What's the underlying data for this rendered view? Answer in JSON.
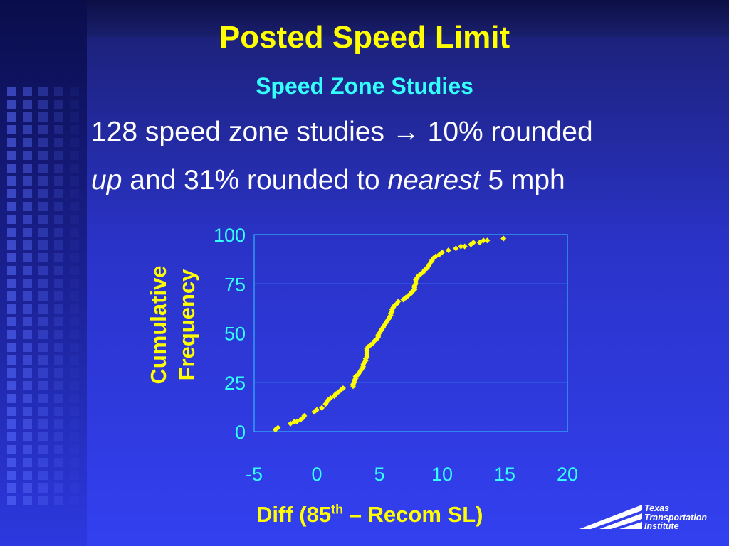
{
  "slide": {
    "title": "Posted Speed Limit",
    "subtitle": "Speed Zone Studies",
    "line1": {
      "text_a": "128 speed zone studies",
      "arrow": "→",
      "text_b": "10% rounded"
    },
    "line2": {
      "em1": "up",
      "text_a": "and 31% rounded to",
      "em2": "nearest",
      "text_b": "5 mph"
    }
  },
  "chart_data": {
    "type": "scatter",
    "title": "",
    "xlabel": {
      "prefix": "Diff (85",
      "sup": "th",
      "suffix": " – Recom SL)"
    },
    "ylabel": [
      "Cumulative",
      "Frequency"
    ],
    "xlim": [
      -5,
      20
    ],
    "ylim": [
      0,
      100
    ],
    "xticks": [
      "-5",
      "0",
      "5",
      "10",
      "15",
      "20"
    ],
    "yticks": [
      "0",
      "25",
      "50",
      "75",
      "100"
    ],
    "grid_y": true,
    "legend": "none",
    "marker_color": "#ffff00",
    "points": [
      [
        -3.3,
        1
      ],
      [
        -3.1,
        2
      ],
      [
        -2.1,
        4
      ],
      [
        -1.8,
        5
      ],
      [
        -1.6,
        5
      ],
      [
        -1.3,
        6
      ],
      [
        -1.1,
        7
      ],
      [
        -1.0,
        8
      ],
      [
        -0.2,
        10
      ],
      [
        0.0,
        11
      ],
      [
        0.4,
        12
      ],
      [
        0.7,
        14
      ],
      [
        0.8,
        15
      ],
      [
        0.9,
        16
      ],
      [
        1.1,
        17
      ],
      [
        1.4,
        18
      ],
      [
        1.5,
        19
      ],
      [
        1.7,
        20
      ],
      [
        1.9,
        21
      ],
      [
        2.1,
        22
      ],
      [
        2.9,
        23
      ],
      [
        2.9,
        24
      ],
      [
        3.0,
        25
      ],
      [
        3.0,
        26
      ],
      [
        3.1,
        27
      ],
      [
        3.1,
        28
      ],
      [
        3.3,
        29
      ],
      [
        3.4,
        30
      ],
      [
        3.5,
        31
      ],
      [
        3.6,
        32
      ],
      [
        3.7,
        33
      ],
      [
        3.7,
        34
      ],
      [
        3.8,
        35
      ],
      [
        3.9,
        36
      ],
      [
        3.9,
        37
      ],
      [
        4.0,
        38
      ],
      [
        4.0,
        39
      ],
      [
        4.0,
        40
      ],
      [
        4.0,
        41
      ],
      [
        4.0,
        42
      ],
      [
        4.1,
        43
      ],
      [
        4.3,
        44
      ],
      [
        4.5,
        45
      ],
      [
        4.6,
        46
      ],
      [
        4.8,
        47
      ],
      [
        4.9,
        48
      ],
      [
        4.9,
        49
      ],
      [
        5.0,
        50
      ],
      [
        5.1,
        51
      ],
      [
        5.2,
        52
      ],
      [
        5.3,
        53
      ],
      [
        5.4,
        54
      ],
      [
        5.5,
        55
      ],
      [
        5.6,
        56
      ],
      [
        5.7,
        57
      ],
      [
        5.8,
        58
      ],
      [
        5.9,
        59
      ],
      [
        5.9,
        60
      ],
      [
        6.0,
        61
      ],
      [
        6.0,
        62
      ],
      [
        6.1,
        63
      ],
      [
        6.2,
        64
      ],
      [
        6.4,
        65
      ],
      [
        6.5,
        66
      ],
      [
        6.9,
        67
      ],
      [
        7.1,
        68
      ],
      [
        7.3,
        69
      ],
      [
        7.5,
        70
      ],
      [
        7.6,
        71
      ],
      [
        7.8,
        72
      ],
      [
        7.8,
        73
      ],
      [
        7.8,
        74
      ],
      [
        7.9,
        75
      ],
      [
        7.9,
        76
      ],
      [
        7.9,
        77
      ],
      [
        8.0,
        78
      ],
      [
        8.1,
        79
      ],
      [
        8.3,
        80
      ],
      [
        8.5,
        81
      ],
      [
        8.6,
        82
      ],
      [
        8.8,
        83
      ],
      [
        8.9,
        84
      ],
      [
        9.0,
        85
      ],
      [
        9.1,
        86
      ],
      [
        9.2,
        87
      ],
      [
        9.3,
        88
      ],
      [
        9.5,
        89
      ],
      [
        9.8,
        90
      ],
      [
        10.0,
        91
      ],
      [
        10.5,
        92
      ],
      [
        11.1,
        93
      ],
      [
        11.5,
        94
      ],
      [
        11.8,
        94
      ],
      [
        12.3,
        95
      ],
      [
        12.5,
        96
      ],
      [
        13.0,
        96
      ],
      [
        13.3,
        97
      ],
      [
        13.6,
        97
      ],
      [
        14.9,
        98
      ]
    ]
  },
  "logo": {
    "line1": "Texas",
    "line2": "Transportation",
    "line3": "Institute"
  }
}
